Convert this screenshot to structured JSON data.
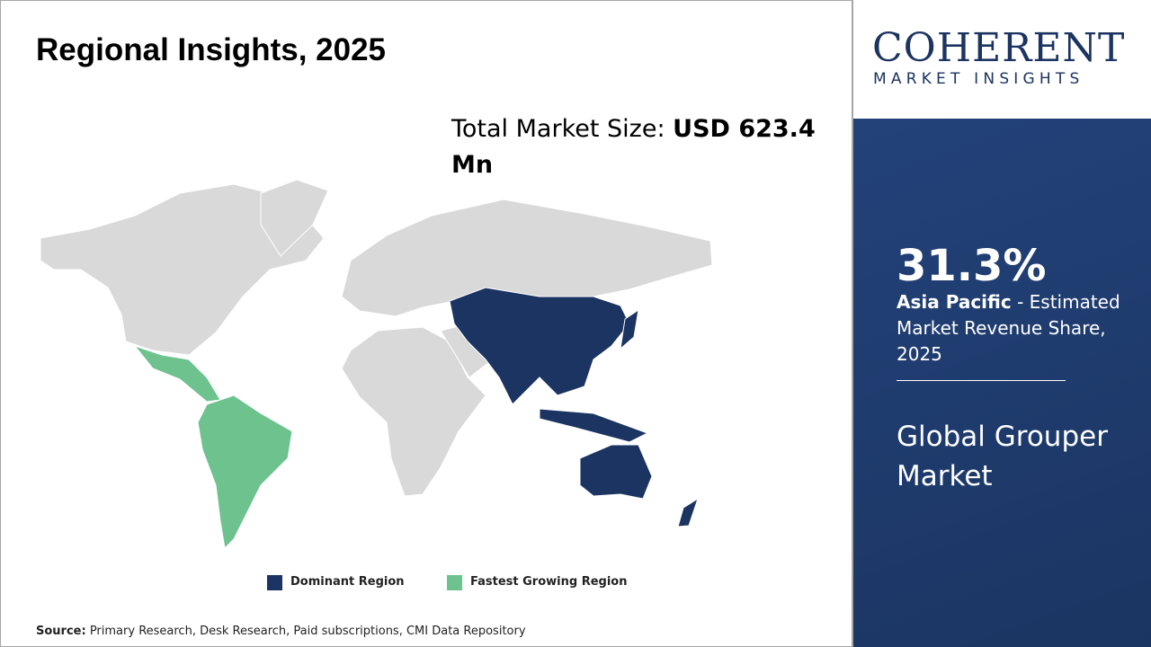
{
  "header": {
    "title": "Regional Insights, 2025"
  },
  "market_size": {
    "label": "Total Market Size: ",
    "value": "USD 623.4 Mn"
  },
  "logo": {
    "name": "COHERENT",
    "tagline": "MARKET INSIGHTS"
  },
  "highlight": {
    "share": "31.3%",
    "region": "Asia Pacific",
    "description": " - Estimated Market Revenue Share, 2025"
  },
  "market_name": "Global Grouper Market",
  "legend": {
    "items": [
      "Dominant Region",
      "Fastest Growing Region"
    ]
  },
  "source": {
    "label": "Source:",
    "text": " Primary Research, Desk Research, Paid subscriptions, CMI Data Repository"
  }
}
